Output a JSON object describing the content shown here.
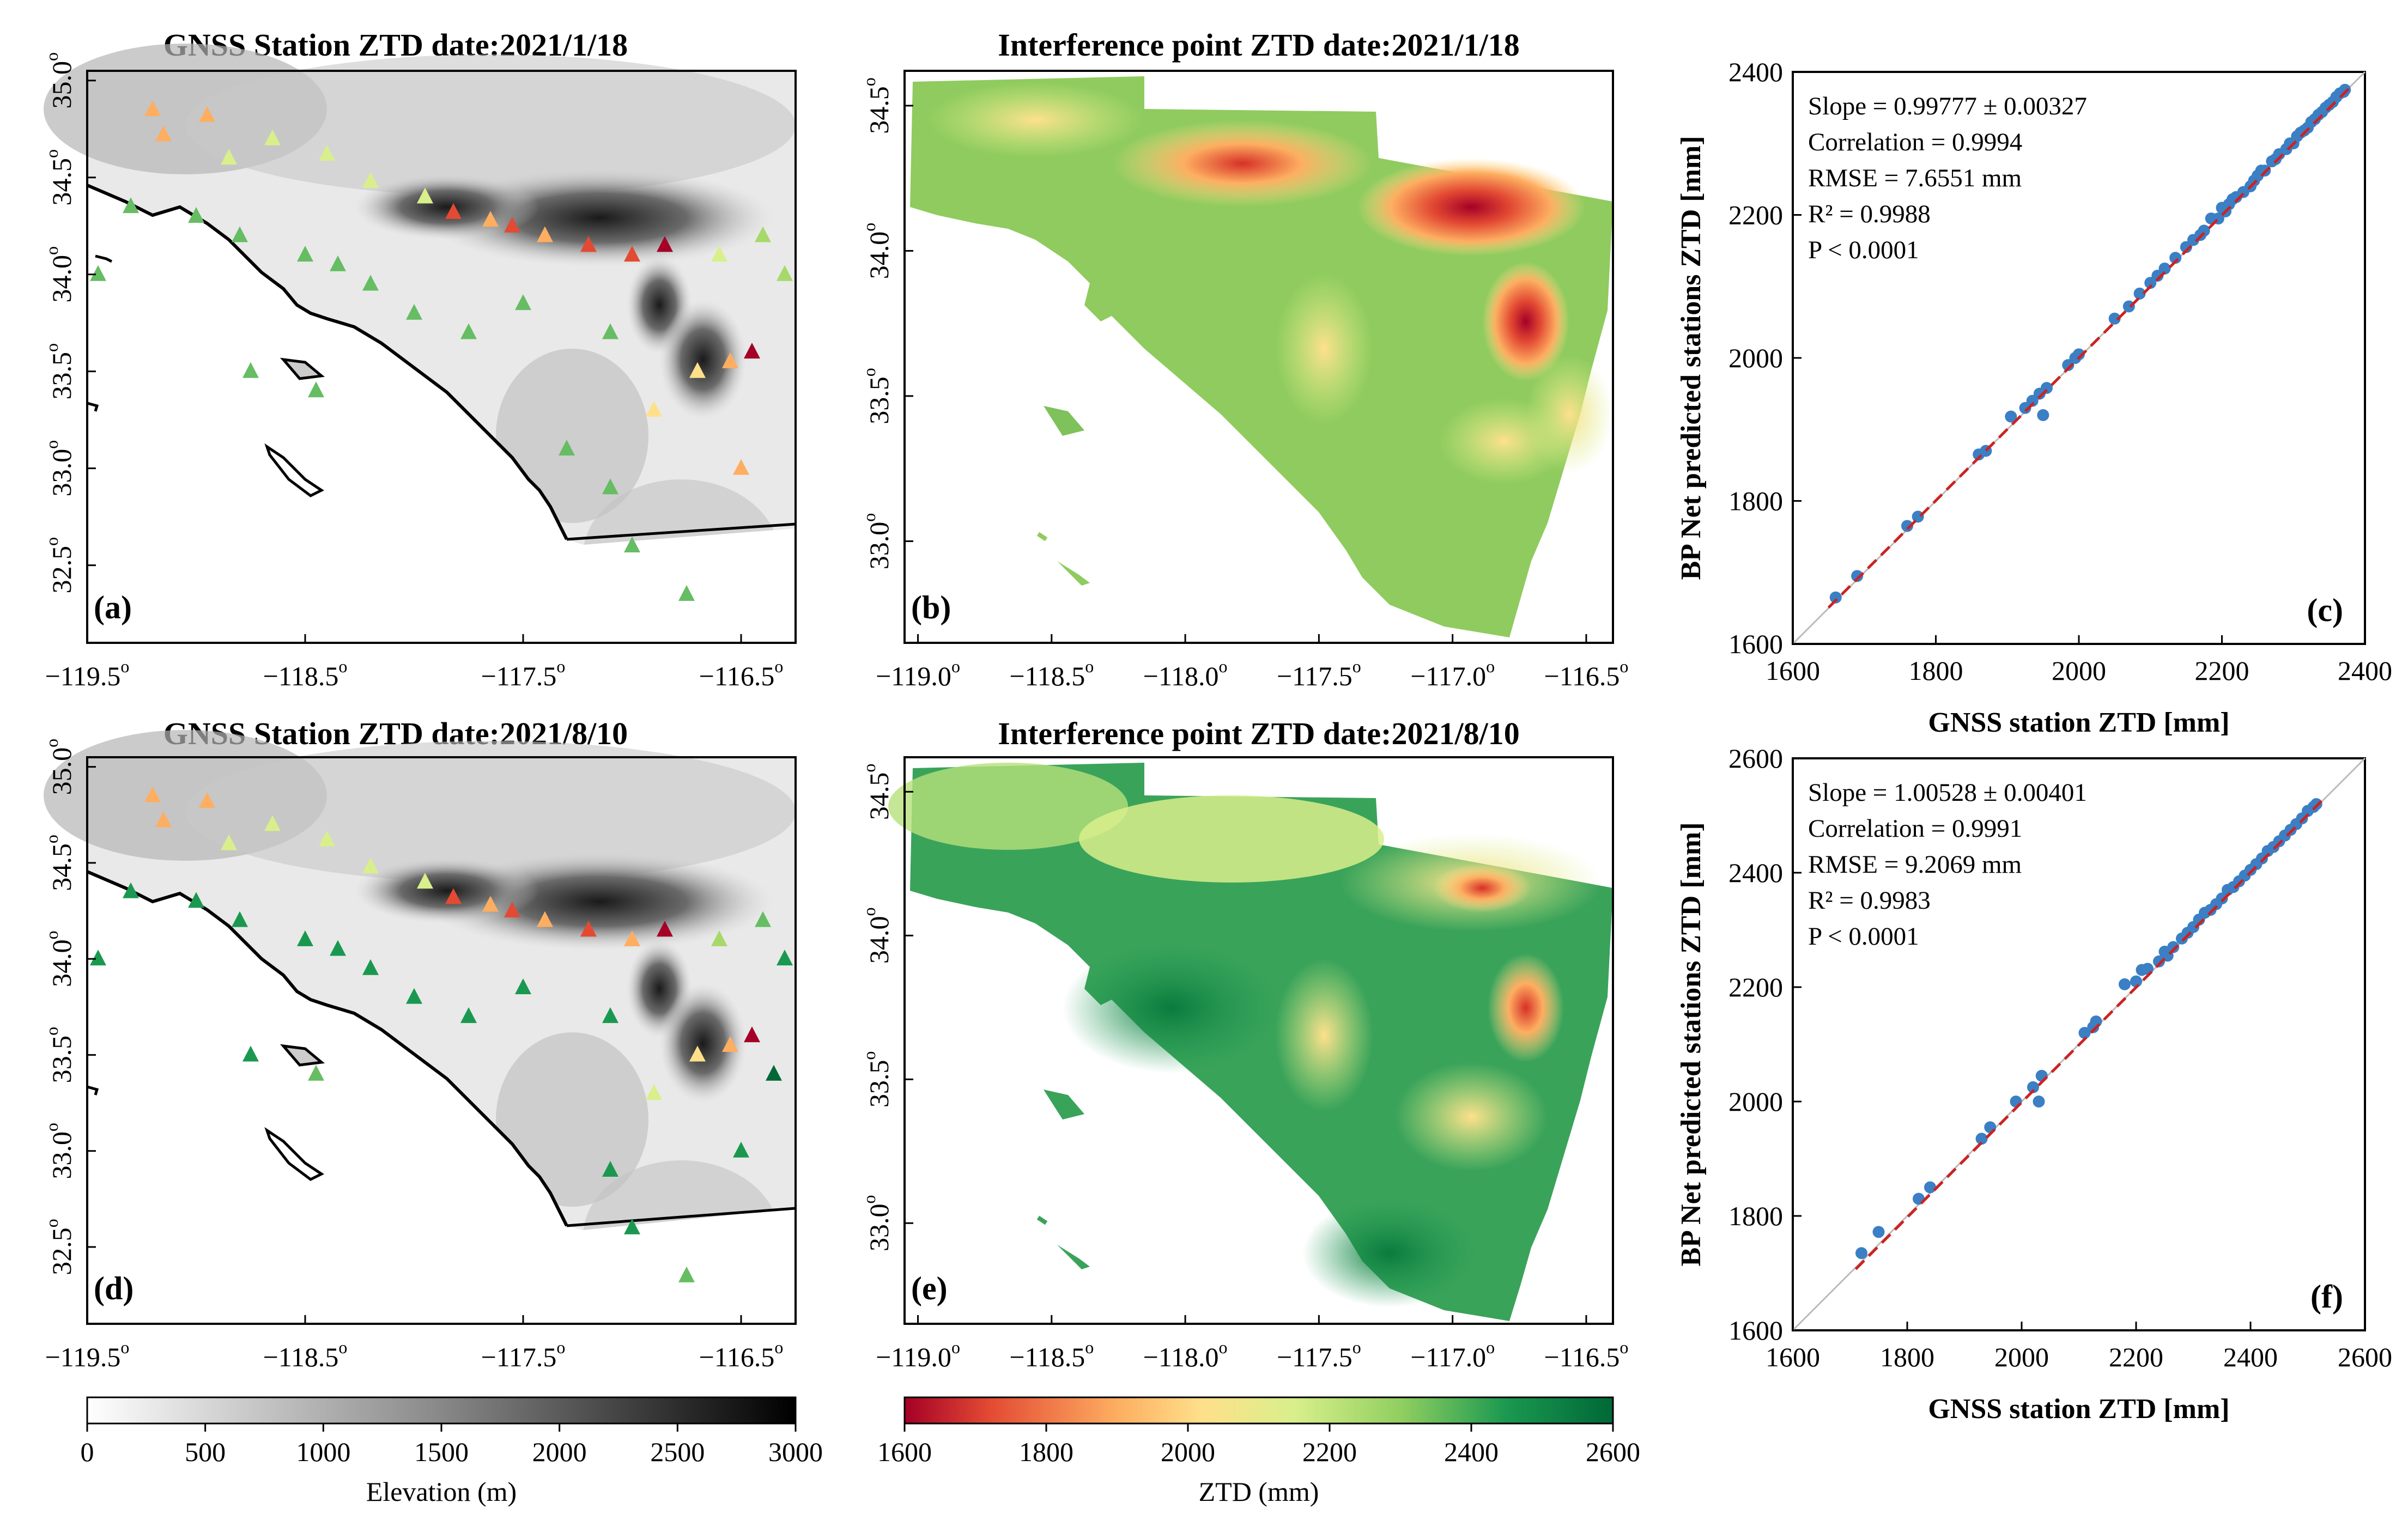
{
  "colors": {
    "ztd_scale": [
      "#a50026",
      "#e34a33",
      "#fdae61",
      "#fee08b",
      "#d9ef8b",
      "#a6d96a",
      "#66bd63",
      "#1a9850",
      "#006837"
    ],
    "elev_scale": [
      "#ffffff",
      "#000000"
    ],
    "scatter_point": "#3b7fc4",
    "fit_line": "#cc2222",
    "ref_line": "#bbbbbb"
  },
  "chart_data": [
    {
      "type": "scatter",
      "panel": "(a)",
      "title": "GNSS Station ZTD date:2021/1/18",
      "x_ticks": [
        "−119.5",
        "−118.5",
        "−117.5",
        "−116.5"
      ],
      "y_ticks": [
        "32.5",
        "33.0",
        "33.5",
        "34.0",
        "34.5",
        "35.0"
      ],
      "xlim": [
        -119.5,
        -116.25
      ],
      "ylim": [
        32.1,
        35.05
      ],
      "stations": [
        {
          "lon": -119.2,
          "lat": 34.85,
          "ztd": 1860
        },
        {
          "lon": -119.15,
          "lat": 34.72,
          "ztd": 1900
        },
        {
          "lon": -118.95,
          "lat": 34.82,
          "ztd": 1900
        },
        {
          "lon": -118.85,
          "lat": 34.6,
          "ztd": 2050
        },
        {
          "lon": -118.65,
          "lat": 34.7,
          "ztd": 2080
        },
        {
          "lon": -118.4,
          "lat": 34.62,
          "ztd": 2120
        },
        {
          "lon": -118.2,
          "lat": 34.48,
          "ztd": 2080
        },
        {
          "lon": -117.95,
          "lat": 34.4,
          "ztd": 2100
        },
        {
          "lon": -117.82,
          "lat": 34.32,
          "ztd": 1700
        },
        {
          "lon": -117.65,
          "lat": 34.28,
          "ztd": 1800
        },
        {
          "lon": -117.55,
          "lat": 34.25,
          "ztd": 1700
        },
        {
          "lon": -117.4,
          "lat": 34.2,
          "ztd": 1850
        },
        {
          "lon": -117.2,
          "lat": 34.15,
          "ztd": 1750
        },
        {
          "lon": -117.0,
          "lat": 34.1,
          "ztd": 1750
        },
        {
          "lon": -116.85,
          "lat": 34.15,
          "ztd": 1650
        },
        {
          "lon": -116.6,
          "lat": 34.1,
          "ztd": 2150
        },
        {
          "lon": -116.4,
          "lat": 34.2,
          "ztd": 2200
        },
        {
          "lon": -116.3,
          "lat": 34.0,
          "ztd": 2250
        },
        {
          "lon": -116.45,
          "lat": 33.6,
          "ztd": 1650
        },
        {
          "lon": -116.55,
          "lat": 33.55,
          "ztd": 1850
        },
        {
          "lon": -116.7,
          "lat": 33.5,
          "ztd": 1950
        },
        {
          "lon": -116.5,
          "lat": 33.0,
          "ztd": 1850
        },
        {
          "lon": -116.9,
          "lat": 33.3,
          "ztd": 2000
        },
        {
          "lon": -117.1,
          "lat": 33.7,
          "ztd": 2300
        },
        {
          "lon": -117.5,
          "lat": 33.85,
          "ztd": 2320
        },
        {
          "lon": -117.75,
          "lat": 33.7,
          "ztd": 2350
        },
        {
          "lon": -118.0,
          "lat": 33.8,
          "ztd": 2350
        },
        {
          "lon": -118.2,
          "lat": 33.95,
          "ztd": 2350
        },
        {
          "lon": -118.35,
          "lat": 34.05,
          "ztd": 2350
        },
        {
          "lon": -118.5,
          "lat": 34.1,
          "ztd": 2330
        },
        {
          "lon": -118.8,
          "lat": 34.2,
          "ztd": 2330
        },
        {
          "lon": -119.0,
          "lat": 34.3,
          "ztd": 2330
        },
        {
          "lon": -119.3,
          "lat": 34.35,
          "ztd": 2350
        },
        {
          "lon": -119.45,
          "lat": 34.0,
          "ztd": 2350
        },
        {
          "lon": -118.75,
          "lat": 33.5,
          "ztd": 2350
        },
        {
          "lon": -118.45,
          "lat": 33.4,
          "ztd": 2340
        },
        {
          "lon": -117.1,
          "lat": 32.9,
          "ztd": 2350
        },
        {
          "lon": -117.0,
          "lat": 32.6,
          "ztd": 2350
        },
        {
          "lon": -116.75,
          "lat": 32.35,
          "ztd": 2350
        },
        {
          "lon": -117.3,
          "lat": 33.1,
          "ztd": 2330
        }
      ]
    },
    {
      "type": "heatmap",
      "panel": "(b)",
      "title": "Interference point ZTD date:2021/1/18",
      "x_ticks": [
        "−119.0",
        "−118.5",
        "−118.0",
        "−117.5",
        "−117.0",
        "−116.5"
      ],
      "y_ticks": [
        "33.0",
        "33.5",
        "34.0",
        "34.5"
      ],
      "xlim": [
        -119.05,
        -116.4
      ],
      "ylim": [
        32.65,
        34.62
      ]
    },
    {
      "type": "scatter",
      "panel": "(c)",
      "xlabel": "GNSS station ZTD [mm]",
      "ylabel": "BP Net predicted stations ZTD [mm]",
      "xlim": [
        1600,
        2400
      ],
      "ylim": [
        1600,
        2400
      ],
      "x_ticks": [
        1600,
        1800,
        2000,
        2200,
        2400
      ],
      "y_ticks": [
        1600,
        1800,
        2000,
        2200,
        2400
      ],
      "fit": {
        "slope": 0.99777,
        "intercept": 4.5
      },
      "annotations": [
        "Slope = 0.99777 ± 0.00327",
        "Correlation = 0.9994",
        "RMSE = 7.6551 mm",
        "R² = 0.9988",
        "P < 0.0001"
      ],
      "points": [
        [
          1660,
          1665
        ],
        [
          1690,
          1695
        ],
        [
          1760,
          1765
        ],
        [
          1775,
          1778
        ],
        [
          1860,
          1865
        ],
        [
          1870,
          1870
        ],
        [
          1905,
          1918
        ],
        [
          1925,
          1930
        ],
        [
          1935,
          1940
        ],
        [
          1945,
          1950
        ],
        [
          1950,
          1920
        ],
        [
          1955,
          1958
        ],
        [
          1985,
          1990
        ],
        [
          1995,
          2000
        ],
        [
          2000,
          2005
        ],
        [
          2050,
          2055
        ],
        [
          2070,
          2072
        ],
        [
          2085,
          2090
        ],
        [
          2100,
          2105
        ],
        [
          2110,
          2115
        ],
        [
          2120,
          2125
        ],
        [
          2135,
          2140
        ],
        [
          2150,
          2155
        ],
        [
          2160,
          2165
        ],
        [
          2170,
          2172
        ],
        [
          2175,
          2178
        ],
        [
          2185,
          2195
        ],
        [
          2195,
          2195
        ],
        [
          2200,
          2210
        ],
        [
          2205,
          2205
        ],
        [
          2210,
          2215
        ],
        [
          2215,
          2222
        ],
        [
          2220,
          2225
        ],
        [
          2230,
          2232
        ],
        [
          2240,
          2240
        ],
        [
          2245,
          2248
        ],
        [
          2250,
          2255
        ],
        [
          2255,
          2262
        ],
        [
          2260,
          2262
        ],
        [
          2270,
          2275
        ],
        [
          2275,
          2278
        ],
        [
          2280,
          2285
        ],
        [
          2290,
          2292
        ],
        [
          2295,
          2300
        ],
        [
          2300,
          2300
        ],
        [
          2305,
          2310
        ],
        [
          2310,
          2315
        ],
        [
          2315,
          2318
        ],
        [
          2320,
          2322
        ],
        [
          2325,
          2330
        ],
        [
          2330,
          2334
        ],
        [
          2335,
          2340
        ],
        [
          2340,
          2344
        ],
        [
          2345,
          2350
        ],
        [
          2350,
          2354
        ],
        [
          2355,
          2358
        ],
        [
          2360,
          2365
        ],
        [
          2365,
          2370
        ],
        [
          2370,
          2372
        ],
        [
          2372,
          2375
        ]
      ]
    },
    {
      "type": "scatter",
      "panel": "(d)",
      "title": "GNSS Station ZTD date:2021/8/10",
      "x_ticks": [
        "−119.5",
        "−118.5",
        "−117.5",
        "−116.5"
      ],
      "y_ticks": [
        "32.5",
        "33.0",
        "33.5",
        "34.0",
        "34.5",
        "35.0"
      ],
      "xlim": [
        -119.5,
        -116.25
      ],
      "ylim": [
        32.1,
        35.05
      ],
      "stations": [
        {
          "lon": -119.2,
          "lat": 34.85,
          "ztd": 1850
        },
        {
          "lon": -119.15,
          "lat": 34.72,
          "ztd": 1900
        },
        {
          "lon": -118.95,
          "lat": 34.82,
          "ztd": 1900
        },
        {
          "lon": -118.85,
          "lat": 34.6,
          "ztd": 2050
        },
        {
          "lon": -118.65,
          "lat": 34.7,
          "ztd": 2100
        },
        {
          "lon": -118.4,
          "lat": 34.62,
          "ztd": 2150
        },
        {
          "lon": -118.2,
          "lat": 34.48,
          "ztd": 2100
        },
        {
          "lon": -117.95,
          "lat": 34.4,
          "ztd": 2150
        },
        {
          "lon": -117.82,
          "lat": 34.32,
          "ztd": 1700
        },
        {
          "lon": -117.65,
          "lat": 34.28,
          "ztd": 1800
        },
        {
          "lon": -117.55,
          "lat": 34.25,
          "ztd": 1700
        },
        {
          "lon": -117.4,
          "lat": 34.2,
          "ztd": 1850
        },
        {
          "lon": -117.2,
          "lat": 34.15,
          "ztd": 1750
        },
        {
          "lon": -117.0,
          "lat": 34.1,
          "ztd": 1800
        },
        {
          "lon": -116.85,
          "lat": 34.15,
          "ztd": 1650
        },
        {
          "lon": -116.6,
          "lat": 34.1,
          "ztd": 2250
        },
        {
          "lon": -116.4,
          "lat": 34.2,
          "ztd": 2300
        },
        {
          "lon": -116.3,
          "lat": 34.0,
          "ztd": 2450
        },
        {
          "lon": -116.45,
          "lat": 33.6,
          "ztd": 1650
        },
        {
          "lon": -116.55,
          "lat": 33.55,
          "ztd": 1900
        },
        {
          "lon": -116.7,
          "lat": 33.5,
          "ztd": 2000
        },
        {
          "lon": -116.5,
          "lat": 33.0,
          "ztd": 2500
        },
        {
          "lon": -116.9,
          "lat": 33.3,
          "ztd": 2100
        },
        {
          "lon": -117.1,
          "lat": 33.7,
          "ztd": 2450
        },
        {
          "lon": -117.5,
          "lat": 33.85,
          "ztd": 2450
        },
        {
          "lon": -117.75,
          "lat": 33.7,
          "ztd": 2480
        },
        {
          "lon": -118.0,
          "lat": 33.8,
          "ztd": 2500
        },
        {
          "lon": -118.2,
          "lat": 33.95,
          "ztd": 2500
        },
        {
          "lon": -118.35,
          "lat": 34.05,
          "ztd": 2500
        },
        {
          "lon": -118.5,
          "lat": 34.1,
          "ztd": 2480
        },
        {
          "lon": -118.8,
          "lat": 34.2,
          "ztd": 2450
        },
        {
          "lon": -119.0,
          "lat": 34.3,
          "ztd": 2450
        },
        {
          "lon": -119.3,
          "lat": 34.35,
          "ztd": 2450
        },
        {
          "lon": -119.45,
          "lat": 34.0,
          "ztd": 2450
        },
        {
          "lon": -118.75,
          "lat": 33.5,
          "ztd": 2450
        },
        {
          "lon": -118.45,
          "lat": 33.4,
          "ztd": 2300
        },
        {
          "lon": -117.1,
          "lat": 32.9,
          "ztd": 2450
        },
        {
          "lon": -117.0,
          "lat": 32.6,
          "ztd": 2450
        },
        {
          "lon": -116.75,
          "lat": 32.35,
          "ztd": 2400
        },
        {
          "lon": -116.35,
          "lat": 33.4,
          "ztd": 2550
        }
      ]
    },
    {
      "type": "heatmap",
      "panel": "(e)",
      "title": "Interference point ZTD date:2021/8/10",
      "x_ticks": [
        "−119.0",
        "−118.5",
        "−118.0",
        "−117.5",
        "−117.0",
        "−116.5"
      ],
      "y_ticks": [
        "33.0",
        "33.5",
        "34.0",
        "34.5"
      ],
      "xlim": [
        -119.05,
        -116.4
      ],
      "ylim": [
        32.65,
        34.62
      ]
    },
    {
      "type": "scatter",
      "panel": "(f)",
      "xlabel": "GNSS station ZTD [mm]",
      "ylabel": "BP Net predicted stations ZTD [mm]",
      "xlim": [
        1600,
        2600
      ],
      "ylim": [
        1600,
        2600
      ],
      "x_ticks": [
        1600,
        1800,
        2000,
        2200,
        2400,
        2600
      ],
      "y_ticks": [
        1600,
        1800,
        2000,
        2200,
        2400,
        2600
      ],
      "fit": {
        "slope": 1.00528,
        "intercept": -12
      },
      "annotations": [
        "Slope = 1.00528 ± 0.00401",
        "Correlation = 0.9991",
        "RMSE = 9.2069 mm",
        "R² = 0.9983",
        "P < 0.0001"
      ],
      "points": [
        [
          1720,
          1735
        ],
        [
          1750,
          1772
        ],
        [
          1820,
          1830
        ],
        [
          1840,
          1850
        ],
        [
          1930,
          1935
        ],
        [
          1945,
          1955
        ],
        [
          1990,
          2000
        ],
        [
          2020,
          2025
        ],
        [
          2030,
          2000
        ],
        [
          2035,
          2045
        ],
        [
          2110,
          2120
        ],
        [
          2125,
          2130
        ],
        [
          2130,
          2140
        ],
        [
          2180,
          2205
        ],
        [
          2200,
          2210
        ],
        [
          2210,
          2230
        ],
        [
          2220,
          2232
        ],
        [
          2240,
          2245
        ],
        [
          2250,
          2262
        ],
        [
          2255,
          2255
        ],
        [
          2265,
          2270
        ],
        [
          2280,
          2285
        ],
        [
          2290,
          2295
        ],
        [
          2300,
          2305
        ],
        [
          2310,
          2318
        ],
        [
          2320,
          2330
        ],
        [
          2330,
          2335
        ],
        [
          2340,
          2345
        ],
        [
          2350,
          2355
        ],
        [
          2360,
          2370
        ],
        [
          2370,
          2375
        ],
        [
          2380,
          2385
        ],
        [
          2390,
          2395
        ],
        [
          2400,
          2405
        ],
        [
          2410,
          2415
        ],
        [
          2420,
          2425
        ],
        [
          2430,
          2438
        ],
        [
          2440,
          2445
        ],
        [
          2450,
          2455
        ],
        [
          2460,
          2465
        ],
        [
          2470,
          2475
        ],
        [
          2480,
          2485
        ],
        [
          2490,
          2495
        ],
        [
          2500,
          2508
        ],
        [
          2510,
          2515
        ],
        [
          2515,
          2520
        ]
      ]
    }
  ],
  "colorbars": {
    "elevation": {
      "label": "Elevation (m)",
      "ticks": [
        "0",
        "500",
        "1000",
        "1500",
        "2000",
        "2500",
        "3000"
      ]
    },
    "ztd": {
      "label": "ZTD (mm)",
      "ticks": [
        "1600",
        "1800",
        "2000",
        "2200",
        "2400",
        "2600"
      ]
    }
  }
}
